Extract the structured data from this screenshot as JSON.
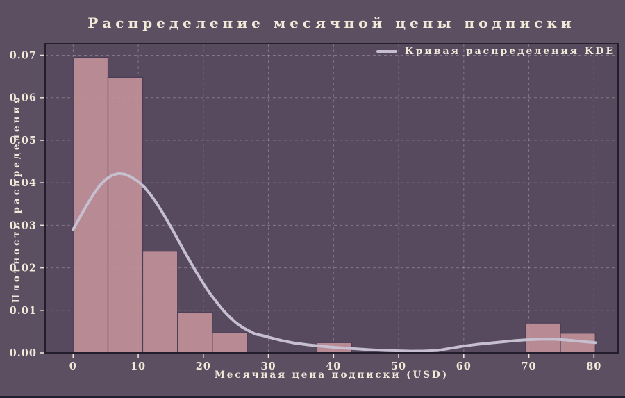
{
  "title": "Распределение месячной цены подписки",
  "legend": {
    "label": "Кривая распределения KDE"
  },
  "axes": {
    "xlabel": "Месячная цена подписки (USD)",
    "ylabel": "Плотность распределения"
  },
  "colors": {
    "background": "#5d4f62",
    "plot_background": "#574a5e",
    "bar_fill": "#c6939b",
    "bar_edge": "#4a3d56",
    "kde_line": "#c6bfd0",
    "text": "#f0ead9",
    "grid": "#e6dbe6",
    "spine": "#241d2b",
    "tick": "#e9e3d6"
  },
  "chart_data": {
    "type": "bar",
    "subtype": "histogram-with-kde",
    "title": "Распределение месячной цены подписки",
    "xlabel": "Месячная цена подписки (USD)",
    "ylabel": "Плотность распределения",
    "legend_entries": [
      "Кривая распределения KDE"
    ],
    "legend_position": "upper right",
    "grid": "dashed, both axes",
    "xlim": [
      -4.3,
      83.7
    ],
    "ylim": [
      0,
      0.0727
    ],
    "xticks": [
      0,
      10,
      20,
      30,
      40,
      50,
      60,
      70,
      80
    ],
    "xtick_labels": [
      "0",
      "10",
      "20",
      "30",
      "40",
      "50",
      "60",
      "70",
      "80"
    ],
    "yticks": [
      0,
      0.01,
      0.02,
      0.03,
      0.04,
      0.05,
      0.06,
      0.07
    ],
    "ytick_labels": [
      "0.00",
      "0.01",
      "0.02",
      "0.03",
      "0.04",
      "0.05",
      "0.06",
      "0.07"
    ],
    "bins": {
      "edges": [
        0,
        5.35,
        10.69,
        16.04,
        21.39,
        26.73,
        32.08,
        37.43,
        42.77,
        48.12,
        53.47,
        58.81,
        64.16,
        69.51,
        74.85,
        80.2
      ],
      "densities": [
        0.0695,
        0.0648,
        0.0239,
        0.0095,
        0.0047,
        0,
        0,
        0.0024,
        0,
        0,
        0,
        0,
        0,
        0.007,
        0.0046
      ]
    },
    "kde_curve": {
      "x": [
        0,
        1,
        2,
        3,
        4,
        5,
        6,
        7,
        8,
        9,
        10,
        11,
        12,
        13,
        14,
        15,
        16,
        17,
        18,
        19,
        20,
        21,
        22,
        23,
        24,
        25,
        26,
        27,
        28,
        29,
        30,
        32,
        34,
        36,
        38,
        40,
        42,
        44,
        46,
        48,
        50,
        52,
        54,
        56,
        58,
        60,
        62,
        64,
        66,
        68,
        70,
        72,
        74,
        76,
        78,
        80.2
      ],
      "y": [
        0.029,
        0.0318,
        0.0345,
        0.037,
        0.0392,
        0.0408,
        0.0418,
        0.0422,
        0.042,
        0.0413,
        0.0403,
        0.0389,
        0.037,
        0.0348,
        0.0323,
        0.0297,
        0.0269,
        0.0241,
        0.0214,
        0.0188,
        0.0163,
        0.014,
        0.012,
        0.0101,
        0.0085,
        0.0071,
        0.006,
        0.0052,
        0.0044,
        0.0041,
        0.0037,
        0.0029,
        0.0023,
        0.0019,
        0.0016,
        0.0013,
        0.0011,
        0.0009,
        0.0007,
        0.00055,
        0.00047,
        0.0004,
        0.00042,
        0.00055,
        0.0011,
        0.0016,
        0.002,
        0.0023,
        0.0026,
        0.0029,
        0.0031,
        0.0032,
        0.0032,
        0.003,
        0.0027,
        0.0024
      ]
    }
  }
}
